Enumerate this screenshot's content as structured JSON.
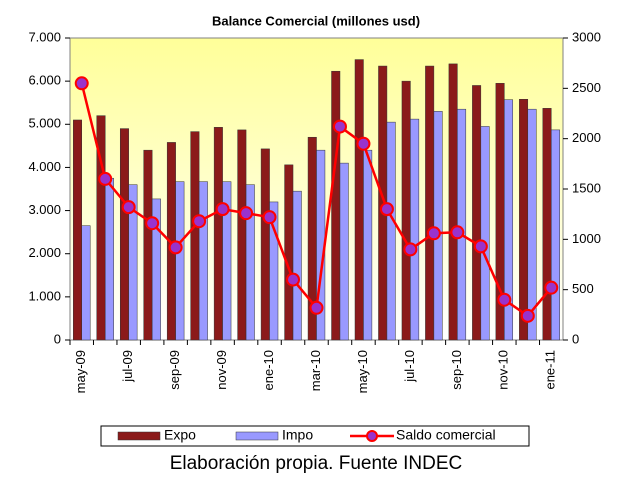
{
  "chart_data": {
    "type": "bar_line",
    "title": "Balance Comercial (millones usd)",
    "caption": "Elaboración propia. Fuente INDEC",
    "categories": [
      "may-09",
      null,
      "jul-09",
      null,
      "sep-09",
      null,
      "nov-09",
      null,
      "ene-10",
      null,
      "mar-10",
      null,
      "may-10",
      null,
      "jul-10",
      null,
      "sep-10",
      null,
      "nov-10",
      null,
      "ene-11"
    ],
    "series": [
      {
        "name": "Expo",
        "type": "bar",
        "color": "#8b1a1a",
        "values": [
          5100,
          5200,
          4900,
          4400,
          4580,
          4830,
          4930,
          4870,
          4430,
          4060,
          4700,
          6230,
          6500,
          6350,
          6000,
          6350,
          6400,
          5900,
          5950,
          5580,
          5370
        ]
      },
      {
        "name": "Impo",
        "type": "bar",
        "color": "#9999ff",
        "values": [
          2650,
          3750,
          3600,
          3270,
          3670,
          3670,
          3670,
          3600,
          3200,
          3450,
          4400,
          4100,
          4400,
          5050,
          5120,
          5300,
          5350,
          4950,
          5570,
          5350,
          4870
        ]
      },
      {
        "name": "Saldo comercial",
        "type": "line",
        "axis": "y2",
        "color": "#ff0000",
        "marker_color": "#9933cc",
        "values": [
          2550,
          1600,
          1320,
          1160,
          920,
          1180,
          1300,
          1260,
          1220,
          600,
          320,
          2120,
          1950,
          1300,
          900,
          1060,
          1070,
          930,
          400,
          240,
          520
        ]
      }
    ],
    "ylim": [
      0,
      7000
    ],
    "yticks": [
      {
        "value": 0,
        "label": "0"
      },
      {
        "value": 1000,
        "label": "1.000"
      },
      {
        "value": 2000,
        "label": "2.000"
      },
      {
        "value": 3000,
        "label": "3.000"
      },
      {
        "value": 4000,
        "label": "4.000"
      },
      {
        "value": 5000,
        "label": "5.000"
      },
      {
        "value": 6000,
        "label": "6.000"
      },
      {
        "value": 7000,
        "label": "7.000"
      }
    ],
    "y2lim": [
      0,
      3000
    ],
    "y2ticks": [
      0,
      500,
      1000,
      1500,
      2000,
      2500,
      3000
    ]
  }
}
